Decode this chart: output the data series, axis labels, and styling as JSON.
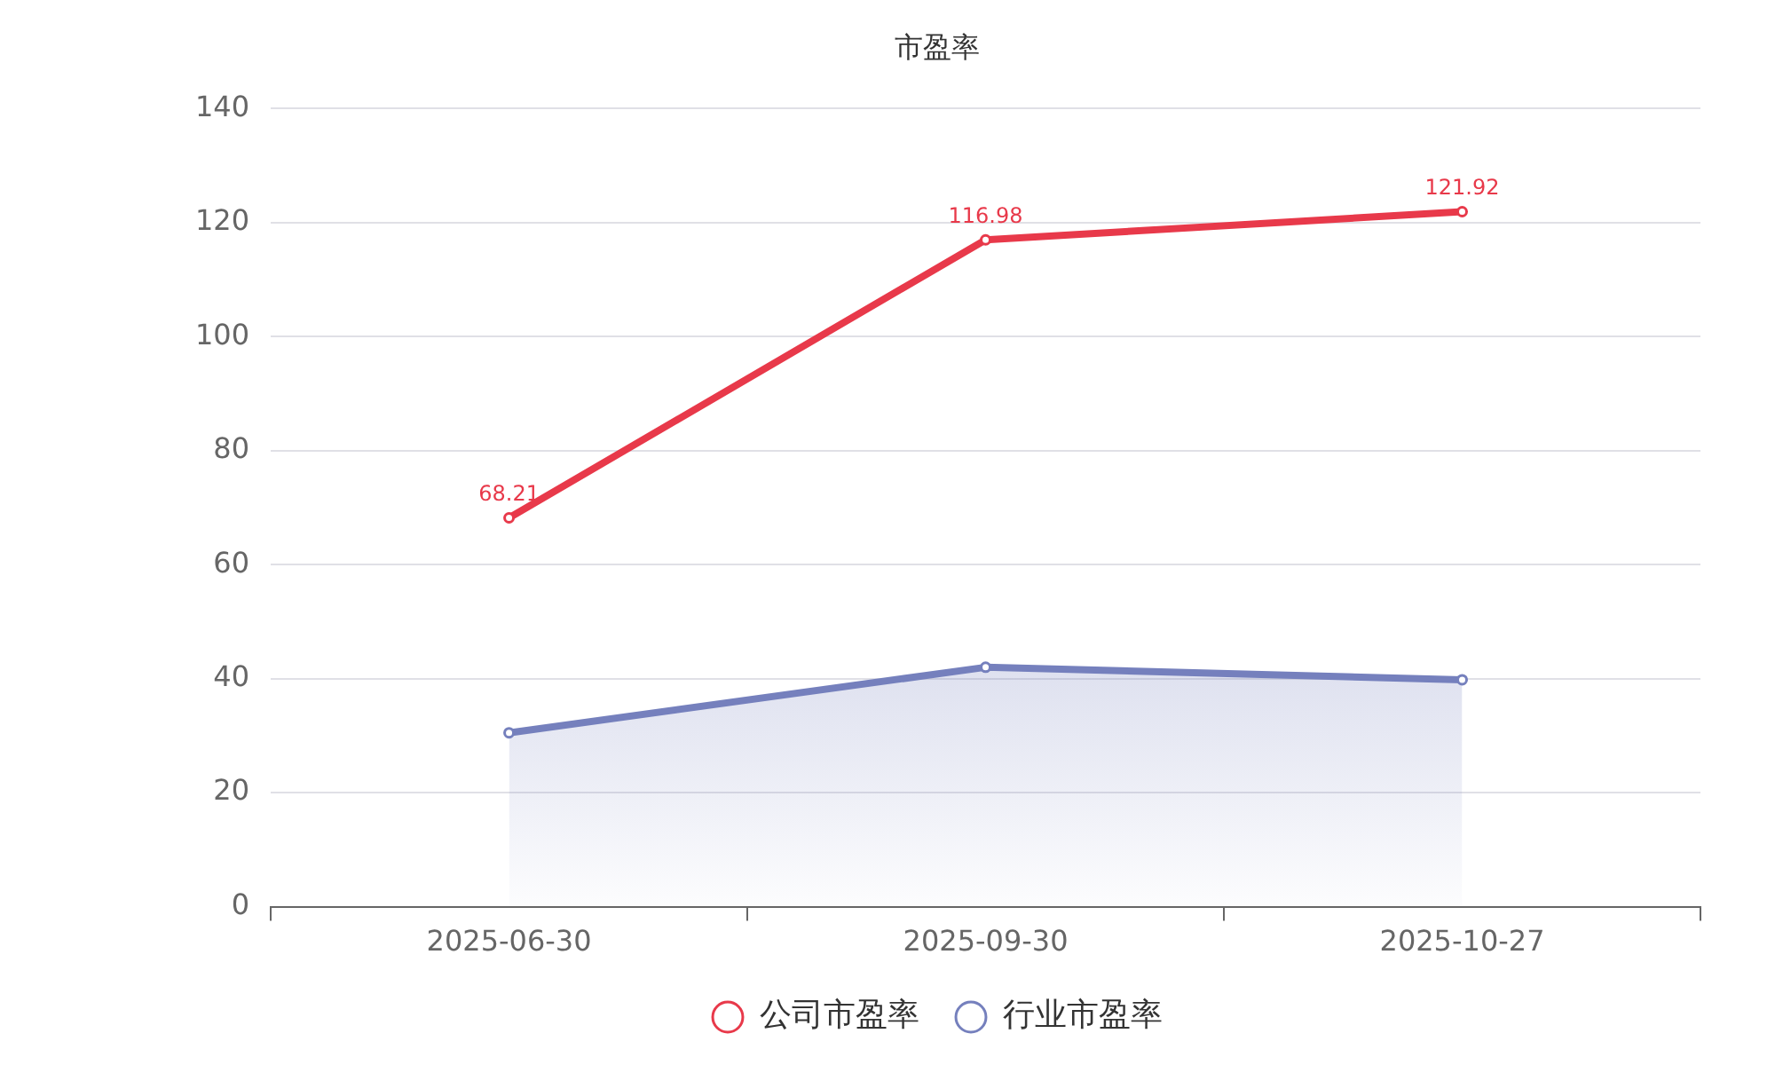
{
  "chart_data": {
    "type": "line",
    "title": "市盈率",
    "categories": [
      "2025-06-30",
      "2025-09-30",
      "2025-10-27"
    ],
    "series": [
      {
        "name": "公司市盈率",
        "type": "line",
        "color": "#e8394a",
        "values": [
          68.21,
          116.98,
          121.92
        ],
        "value_labels": [
          "68.21",
          "116.98",
          "121.92"
        ]
      },
      {
        "name": "行业市盈率",
        "type": "area",
        "color": "#7580bd",
        "values": [
          30.5,
          42,
          39.8
        ]
      }
    ],
    "ylim": [
      0,
      140
    ],
    "yticks": [
      0,
      20,
      40,
      60,
      80,
      100,
      120,
      140
    ],
    "grid": "y",
    "legend": "bottom",
    "marker": "circle"
  }
}
